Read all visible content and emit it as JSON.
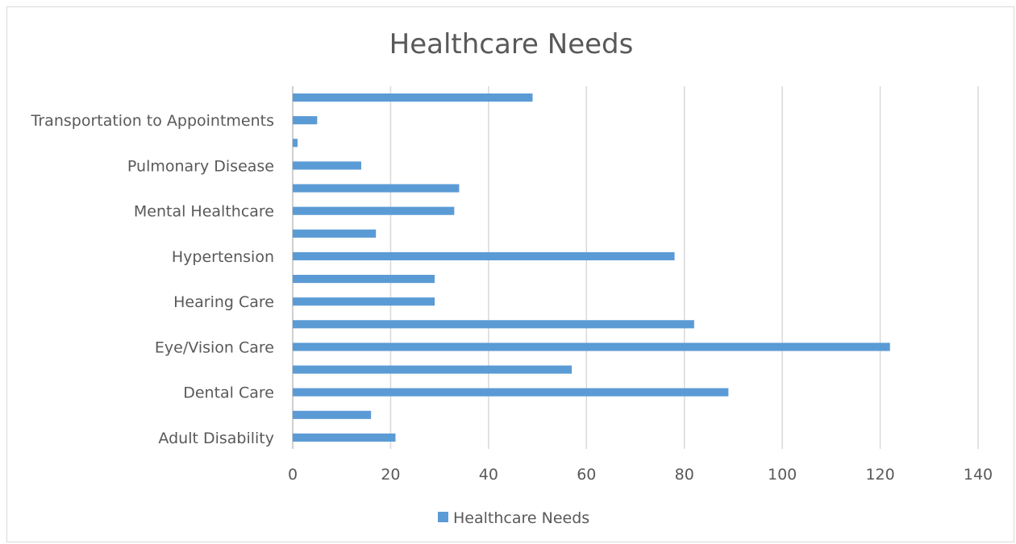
{
  "chart_data": {
    "type": "bar",
    "orientation": "horizontal",
    "title": "Healthcare Needs",
    "categories": [
      "Adult Disability",
      "",
      "Dental Care",
      "",
      "Eye/Vision Care",
      "",
      "Hearing Care",
      "",
      "Hypertension",
      "",
      "Mental Healthcare",
      "",
      "Pulmonary Disease",
      "",
      "Transportation to Appointments",
      ""
    ],
    "series": [
      {
        "name": "Healthcare Needs",
        "values": [
          21,
          16,
          89,
          57,
          122,
          82,
          29,
          29,
          78,
          17,
          33,
          34,
          14,
          1,
          5,
          49
        ]
      }
    ],
    "xlim": [
      0,
      140
    ],
    "xticks": [
      "0",
      "20",
      "40",
      "60",
      "80",
      "100",
      "120",
      "140"
    ],
    "grid": true,
    "legend": "bottom",
    "bar_color": "#5b9bd5"
  }
}
